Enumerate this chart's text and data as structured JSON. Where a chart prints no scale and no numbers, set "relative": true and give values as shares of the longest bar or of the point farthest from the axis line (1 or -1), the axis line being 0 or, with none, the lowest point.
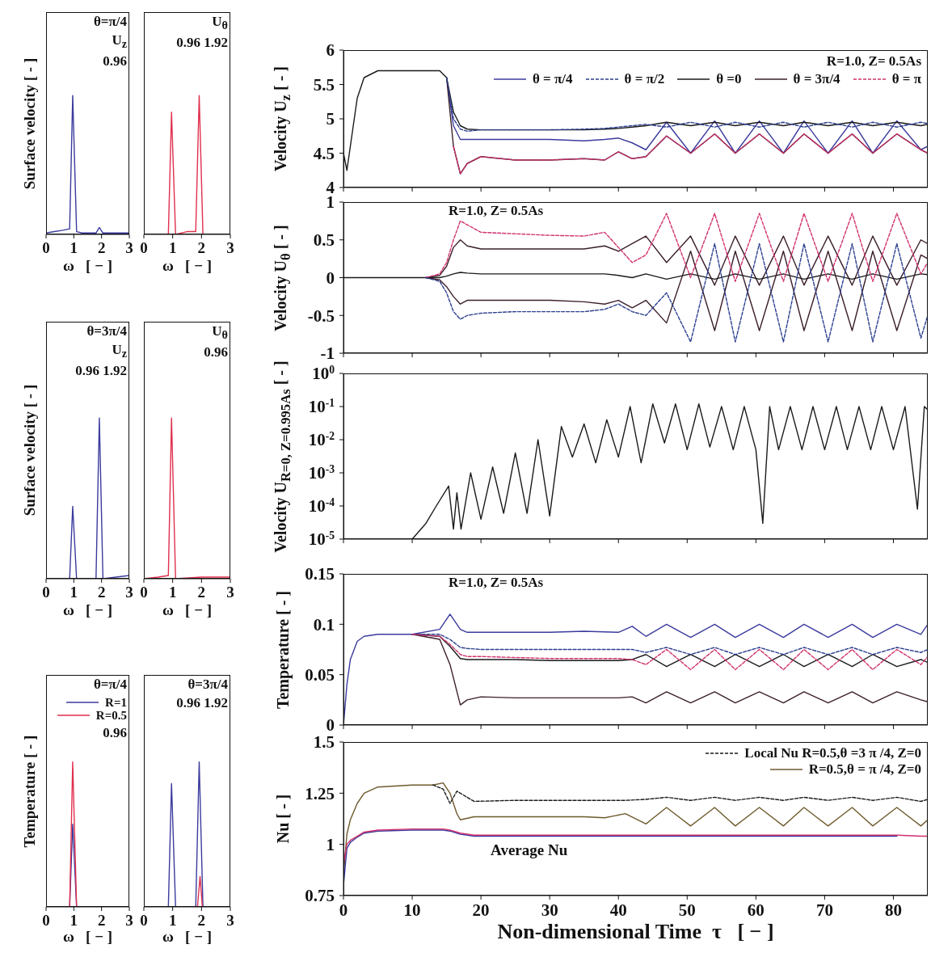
{
  "chart_data": [
    {
      "type": "line",
      "relative": true,
      "ylabel": "Surface  velocity  [ - ]",
      "xlabel": "ω   [ − ]",
      "xlim": [
        0,
        3
      ],
      "xticks": [
        0,
        1,
        2,
        3
      ],
      "annotations": [
        "θ=π/4",
        "U$_{z}$",
        "0.96"
      ],
      "series": [
        {
          "color": "#3b3b9e",
          "x": [
            0,
            0.3,
            0.6,
            0.85,
            0.96,
            1.1,
            1.3,
            1.8,
            1.92,
            2.05,
            2.5,
            3
          ],
          "values": [
            0.01,
            0.02,
            0.03,
            0.04,
            1,
            0.02,
            0.01,
            0.01,
            0.05,
            0.01,
            0.01,
            0.01
          ]
        }
      ]
    },
    {
      "type": "line",
      "relative": true,
      "xlabel": "ω   [ − ]",
      "xlim": [
        0,
        3
      ],
      "xticks": [
        0,
        1,
        2,
        3
      ],
      "annotations": [
        "U$_{θ}$",
        "0.96  1.92"
      ],
      "series": [
        {
          "color": "#e0304e",
          "x": [
            0,
            0.85,
            0.96,
            1.1,
            1.5,
            1.8,
            1.92,
            2.05,
            3
          ],
          "values": [
            0,
            0,
            0.88,
            0,
            0.02,
            0.02,
            1,
            0,
            0
          ]
        }
      ]
    },
    {
      "type": "line",
      "relative": true,
      "ylabel": "Surface  velocity  [ - ]",
      "xlabel": "ω   [ − ]",
      "xlim": [
        0,
        3
      ],
      "xticks": [
        0,
        1,
        2,
        3
      ],
      "annotations": [
        "θ=3π/4",
        "U$_{z}$",
        "0.96 1.92"
      ],
      "series": [
        {
          "color": "#3b3b9e",
          "x": [
            0,
            0.85,
            0.96,
            1.1,
            1.8,
            1.92,
            2.05,
            3
          ],
          "values": [
            0,
            0,
            0.45,
            0,
            0,
            1,
            0,
            0.02
          ]
        }
      ]
    },
    {
      "type": "line",
      "relative": true,
      "xlabel": "ω   [ − ]",
      "xlim": [
        0,
        3
      ],
      "xticks": [
        0,
        1,
        2,
        3
      ],
      "annotations": [
        "U$_{θ}$",
        "0.96"
      ],
      "series": [
        {
          "color": "#e0304e",
          "x": [
            0,
            0.5,
            0.85,
            0.96,
            1.1,
            2,
            3
          ],
          "values": [
            0,
            0.01,
            0.02,
            1,
            0,
            0.01,
            0.01
          ]
        }
      ]
    },
    {
      "type": "line",
      "relative": true,
      "ylabel": "Temperature  [ - ]",
      "xlabel": "ω   [ − ]",
      "xlim": [
        0,
        3
      ],
      "xticks": [
        0,
        1,
        2,
        3
      ],
      "annotations": [
        "θ=π/4",
        "0.96"
      ],
      "legend": "top right",
      "series": [
        {
          "name": "R=1",
          "color": "#3b3b9e",
          "x": [
            0,
            0.85,
            0.96,
            1.1,
            3
          ],
          "values": [
            0,
            0,
            0.57,
            0,
            0
          ]
        },
        {
          "name": "R=0.5",
          "color": "#e0304e",
          "x": [
            0,
            0.85,
            0.96,
            1.1,
            3
          ],
          "values": [
            0,
            0,
            1,
            0,
            0
          ]
        }
      ]
    },
    {
      "type": "line",
      "relative": true,
      "xlabel": "ω   [ − ]",
      "xlim": [
        0,
        3
      ],
      "xticks": [
        0,
        1,
        2,
        3
      ],
      "annotations": [
        "θ=3π/4",
        "0.96  1.92"
      ],
      "series": [
        {
          "color": "#3b3b9e",
          "x": [
            0,
            0.85,
            0.96,
            1.1,
            1.8,
            1.92,
            2.05,
            3
          ],
          "values": [
            0,
            0,
            0.85,
            0,
            0,
            1,
            0,
            0
          ]
        },
        {
          "color": "#e0304e",
          "x": [
            1.86,
            1.95,
            2.03
          ],
          "values": [
            0,
            0.21,
            0
          ]
        }
      ]
    },
    {
      "type": "line",
      "ylabel": "Velocity  U$_{z}$  [ - ]",
      "xlim": [
        0,
        85
      ],
      "xticks": [
        0,
        10,
        20,
        30,
        40,
        50,
        60,
        70,
        80
      ],
      "ylim": [
        4,
        6
      ],
      "yticks": [
        4,
        4.5,
        5,
        5.5,
        6
      ],
      "tick_labels": "y",
      "legend": "top right",
      "annotations": [
        "R=1.0,  Z= 0.5As"
      ],
      "x": [
        0,
        0.5,
        1,
        2,
        3,
        5,
        8,
        12,
        14,
        15,
        16,
        17,
        18,
        20,
        25,
        30,
        35,
        38,
        40,
        42,
        44,
        47,
        50.5,
        54,
        57,
        60.5,
        64,
        67,
        70.5,
        74,
        77,
        80.5,
        84,
        85
      ],
      "series": [
        {
          "name": "θ = π/4",
          "color": "#3b3b9e",
          "values": [
            null,
            null,
            null,
            null,
            null,
            null,
            null,
            null,
            null,
            5.6,
            4.9,
            4.7,
            4.7,
            4.7,
            4.7,
            4.7,
            4.68,
            4.7,
            4.72,
            4.65,
            4.55,
            4.95,
            4.5,
            4.97,
            4.5,
            4.97,
            4.5,
            4.97,
            4.5,
            4.97,
            4.5,
            4.97,
            4.55,
            4.6
          ]
        },
        {
          "name": "θ = π/2",
          "color": "#2b3f8f",
          "line_style": "dashed",
          "values": [
            null,
            null,
            null,
            null,
            null,
            null,
            null,
            null,
            null,
            5.6,
            5.0,
            4.85,
            4.82,
            4.84,
            4.84,
            4.84,
            4.85,
            4.86,
            4.88,
            4.9,
            4.92,
            4.88,
            4.95,
            4.88,
            4.95,
            4.88,
            4.95,
            4.88,
            4.95,
            4.88,
            4.95,
            4.88,
            4.95,
            4.93
          ]
        },
        {
          "name": "θ =0",
          "color": "#1a1a1a",
          "values": [
            4.5,
            4.25,
            4.6,
            5.3,
            5.6,
            5.7,
            5.7,
            5.7,
            5.7,
            5.6,
            5.1,
            4.9,
            4.85,
            4.84,
            4.84,
            4.84,
            4.84,
            4.85,
            4.86,
            4.88,
            4.9,
            4.95,
            4.9,
            4.95,
            4.9,
            4.95,
            4.9,
            4.95,
            4.9,
            4.95,
            4.9,
            4.95,
            4.9,
            4.92
          ]
        },
        {
          "name": "θ = 3π/4",
          "color": "#3b1f2b",
          "values": [
            null,
            null,
            null,
            null,
            null,
            null,
            null,
            null,
            null,
            5.6,
            4.6,
            4.2,
            4.35,
            4.45,
            4.4,
            4.4,
            4.42,
            4.4,
            4.52,
            4.42,
            4.45,
            4.75,
            4.5,
            4.78,
            4.5,
            4.78,
            4.5,
            4.78,
            4.5,
            4.78,
            4.5,
            4.78,
            4.55,
            4.5
          ]
        },
        {
          "name": "θ = π",
          "color": "#d0306e",
          "line_style": "dashed",
          "values": [
            null,
            null,
            null,
            null,
            null,
            null,
            null,
            null,
            null,
            null,
            4.6,
            4.2,
            4.35,
            4.45,
            4.4,
            4.4,
            4.42,
            4.4,
            4.52,
            4.42,
            4.45,
            4.75,
            4.5,
            4.78,
            4.5,
            4.78,
            4.5,
            4.78,
            4.5,
            4.78,
            4.5,
            4.78,
            4.55,
            4.5
          ]
        }
      ]
    },
    {
      "type": "line",
      "ylabel": "Velocity  U$_{θ}$ [ - ]",
      "xlim": [
        0,
        85
      ],
      "xticks": [
        0,
        10,
        20,
        30,
        40,
        50,
        60,
        70,
        80
      ],
      "ylim": [
        -1,
        1
      ],
      "yticks": [
        -1,
        -0.5,
        0,
        0.5,
        1
      ],
      "tick_labels": "y",
      "annotations": [
        "R=1.0,  Z= 0.5As"
      ],
      "x": [
        0,
        0.5,
        1,
        2,
        3,
        5,
        8,
        12,
        14,
        15,
        16,
        17,
        18,
        20,
        25,
        30,
        35,
        38,
        40,
        42,
        44,
        47,
        50.5,
        54,
        57,
        60.5,
        64,
        67,
        70.5,
        74,
        77,
        80.5,
        84,
        85
      ],
      "series": [
        {
          "color": "#d0306e",
          "line_style": "dashed",
          "values": [
            null,
            null,
            null,
            null,
            null,
            null,
            null,
            0,
            0.05,
            0.2,
            0.5,
            0.75,
            0.7,
            0.6,
            0.58,
            0.56,
            0.55,
            0.6,
            0.4,
            0.2,
            0.3,
            0.85,
            0.0,
            0.85,
            -0.05,
            0.85,
            -0.05,
            0.85,
            -0.05,
            0.85,
            -0.05,
            0.85,
            0.05,
            0.2
          ]
        },
        {
          "color": "#3b1f2b",
          "values": [
            null,
            null,
            null,
            null,
            null,
            null,
            null,
            0,
            0.03,
            0.15,
            0.4,
            0.5,
            0.42,
            0.38,
            0.38,
            0.38,
            0.38,
            0.42,
            0.35,
            0.45,
            0.55,
            0.2,
            0.55,
            -0.1,
            0.55,
            -0.1,
            0.55,
            -0.1,
            0.55,
            -0.1,
            0.55,
            -0.1,
            0.5,
            0.45
          ]
        },
        {
          "color": "#1a1a1a",
          "values": [
            0,
            0,
            0,
            0,
            0,
            0,
            0,
            0,
            0,
            0.02,
            0.05,
            0.07,
            0.06,
            0.05,
            0.05,
            0.05,
            0.05,
            0.05,
            0.03,
            0.0,
            0.05,
            -0.02,
            0.05,
            -0.02,
            0.05,
            -0.02,
            0.05,
            -0.02,
            0.05,
            -0.02,
            0.05,
            -0.02,
            0.05,
            0.04
          ]
        },
        {
          "color": "#3b1f2b",
          "values": [
            null,
            null,
            null,
            null,
            null,
            null,
            null,
            0,
            -0.03,
            -0.12,
            -0.25,
            -0.35,
            -0.3,
            -0.3,
            -0.3,
            -0.3,
            -0.32,
            -0.35,
            -0.3,
            -0.4,
            -0.3,
            -0.6,
            0.35,
            -0.7,
            0.35,
            -0.7,
            0.35,
            -0.7,
            0.35,
            -0.7,
            0.35,
            -0.7,
            0.3,
            0.25
          ]
        },
        {
          "color": "#2b3f8f",
          "line_style": "dashed",
          "values": [
            null,
            null,
            null,
            null,
            null,
            null,
            null,
            0,
            -0.05,
            -0.2,
            -0.45,
            -0.55,
            -0.5,
            -0.47,
            -0.45,
            -0.45,
            -0.45,
            -0.42,
            -0.35,
            -0.45,
            -0.5,
            -0.2,
            -0.85,
            0.45,
            -0.85,
            0.45,
            -0.85,
            0.45,
            -0.85,
            0.45,
            -0.85,
            0.45,
            -0.8,
            -0.5
          ]
        }
      ]
    },
    {
      "type": "line",
      "log": "y",
      "ylabel": "Velocity  U$_{R=0, Z=0.995As}$ [ - ]",
      "xlim": [
        0,
        85
      ],
      "xticks": [
        0,
        10,
        20,
        30,
        40,
        50,
        60,
        70,
        80
      ],
      "ylim": [
        1e-05,
        1
      ],
      "tick_labels": "y",
      "yticks": [
        {
          "value": 1e-05,
          "label": "10$^{-5}$"
        },
        {
          "value": 0.0001,
          "label": "10$^{-4}$"
        },
        {
          "value": 0.001,
          "label": "10$^{-3}$"
        },
        {
          "value": 0.01,
          "label": "10$^{-2}$"
        },
        {
          "value": 0.1,
          "label": "10$^{-1}$"
        },
        {
          "value": 1,
          "label": "10$^{0}$"
        }
      ],
      "series": [
        {
          "color": "#1a1a1a",
          "x": [
            10,
            12,
            13.5,
            15.3,
            16,
            16.5,
            17.1,
            18.5,
            20,
            21.7,
            23.3,
            25,
            26.7,
            28.3,
            30,
            31.7,
            33.3,
            35,
            36.7,
            38.3,
            40,
            41.7,
            43.3,
            45,
            46.7,
            48.3,
            50,
            51.7,
            53.3,
            55,
            56.7,
            58.3,
            60,
            61,
            62,
            63.3,
            65,
            66.7,
            68.3,
            70,
            71.7,
            73.3,
            75,
            76.7,
            78.3,
            80,
            81.7,
            83.5,
            84.5,
            85
          ],
          "values": [
            1e-05,
            3e-05,
            0.0001,
            0.0004,
            2e-05,
            0.00025,
            2e-05,
            0.001,
            4e-05,
            0.0015,
            6e-05,
            0.004,
            6e-05,
            0.01,
            5e-05,
            0.025,
            0.003,
            0.03,
            0.002,
            0.04,
            0.003,
            0.1,
            0.002,
            0.12,
            0.008,
            0.12,
            0.005,
            0.12,
            0.006,
            0.1,
            0.005,
            0.1,
            0.005,
            3e-05,
            0.1,
            0.005,
            0.1,
            0.005,
            0.1,
            0.005,
            0.1,
            0.005,
            0.1,
            0.005,
            0.1,
            0.005,
            0.1,
            8e-05,
            0.1,
            0.08
          ]
        }
      ]
    },
    {
      "type": "line",
      "ylabel": "Temperature [ - ]",
      "xlim": [
        0,
        85
      ],
      "xticks": [
        0,
        10,
        20,
        30,
        40,
        50,
        60,
        70,
        80
      ],
      "ylim": [
        0,
        0.15
      ],
      "yticks": [
        0,
        0.05,
        0.1,
        0.15
      ],
      "tick_labels": "y",
      "annotations": [
        "R=1.0, Z= 0.5As"
      ],
      "x": [
        0,
        0.5,
        1,
        2,
        3,
        5,
        10,
        14,
        15.5,
        17,
        18,
        20,
        25,
        30,
        35,
        40,
        42,
        44,
        47,
        50.5,
        54,
        57,
        60.5,
        64,
        67,
        70.5,
        74,
        77,
        80.5,
        84,
        85
      ],
      "series": [
        {
          "color": "#3b3b9e",
          "values": [
            0,
            0.04,
            0.065,
            0.083,
            0.088,
            0.09,
            0.09,
            0.095,
            0.11,
            0.095,
            0.092,
            0.092,
            0.092,
            0.092,
            0.093,
            0.092,
            0.098,
            0.088,
            0.1,
            0.087,
            0.1,
            0.087,
            0.1,
            0.087,
            0.1,
            0.087,
            0.1,
            0.087,
            0.1,
            0.09,
            0.1
          ]
        },
        {
          "color": "#2b3f8f",
          "line_style": "dashed",
          "values": [
            null,
            null,
            null,
            null,
            null,
            null,
            0.09,
            0.09,
            0.085,
            0.077,
            0.076,
            0.075,
            0.075,
            0.075,
            0.075,
            0.075,
            0.075,
            0.072,
            0.077,
            0.07,
            0.077,
            0.07,
            0.077,
            0.07,
            0.077,
            0.07,
            0.077,
            0.07,
            0.077,
            0.072,
            0.075
          ]
        },
        {
          "color": "#d0306e",
          "line_style": "dashed",
          "values": [
            null,
            null,
            null,
            null,
            null,
            null,
            0.09,
            0.088,
            0.08,
            0.07,
            0.068,
            0.068,
            0.067,
            0.066,
            0.066,
            0.066,
            0.065,
            0.06,
            0.075,
            0.055,
            0.075,
            0.055,
            0.075,
            0.055,
            0.075,
            0.055,
            0.075,
            0.055,
            0.075,
            0.06,
            0.068
          ]
        },
        {
          "color": "#1a1a1a",
          "values": [
            null,
            null,
            null,
            null,
            null,
            null,
            0.09,
            0.088,
            0.078,
            0.066,
            0.065,
            0.065,
            0.065,
            0.064,
            0.064,
            0.064,
            0.065,
            0.07,
            0.058,
            0.07,
            0.058,
            0.07,
            0.058,
            0.07,
            0.058,
            0.07,
            0.058,
            0.07,
            0.058,
            0.065,
            0.062
          ]
        },
        {
          "color": "#3b1f2b",
          "values": [
            null,
            null,
            null,
            null,
            null,
            null,
            0.09,
            0.085,
            0.06,
            0.02,
            0.025,
            0.028,
            0.027,
            0.027,
            0.027,
            0.027,
            0.028,
            0.022,
            0.033,
            0.022,
            0.033,
            0.022,
            0.033,
            0.022,
            0.033,
            0.022,
            0.033,
            0.022,
            0.033,
            0.025,
            0.023
          ]
        }
      ]
    },
    {
      "type": "line",
      "ylabel": "Nu  [ - ]",
      "xlabel": "Non-dimensional Time  τ   [ − ]",
      "xlim": [
        0,
        85
      ],
      "xticks": [
        0,
        10,
        20,
        30,
        40,
        50,
        60,
        70,
        80
      ],
      "ylim": [
        0.75,
        1.5
      ],
      "yticks": [
        0.75,
        1,
        1.25,
        1.5
      ],
      "legend": "top right",
      "annotations": [
        {
          "text": "Average Nu",
          "x": 27,
          "y": 1.045
        }
      ],
      "x": [
        0,
        0.5,
        1,
        2,
        3,
        5,
        10,
        13,
        14.5,
        15.5,
        16.5,
        17,
        19,
        25,
        30,
        35,
        38,
        41,
        44,
        47,
        50.5,
        54,
        57,
        60.5,
        64,
        67,
        70.5,
        74,
        77,
        80.5,
        84,
        85
      ],
      "series": [
        {
          "name": "Local Nu  R=0.5,θ =3 π /4, Z=0",
          "color": "#1a1a1a",
          "line_style": "dashed",
          "values": [
            null,
            null,
            null,
            null,
            null,
            null,
            null,
            1.29,
            1.27,
            1.2,
            1.26,
            1.25,
            1.21,
            1.215,
            1.215,
            1.215,
            1.215,
            1.215,
            1.22,
            1.23,
            1.215,
            1.23,
            1.215,
            1.23,
            1.215,
            1.23,
            1.215,
            1.23,
            1.215,
            1.23,
            1.21,
            1.22
          ]
        },
        {
          "name": "R=0.5,θ = π /4, Z=0",
          "color": "#6e5a2c",
          "values": [
            0.85,
            1.05,
            1.12,
            1.2,
            1.25,
            1.28,
            1.29,
            1.29,
            1.3,
            1.25,
            1.15,
            1.12,
            1.135,
            1.135,
            1.135,
            1.135,
            1.13,
            1.15,
            1.1,
            1.18,
            1.09,
            1.18,
            1.09,
            1.18,
            1.09,
            1.18,
            1.09,
            1.18,
            1.09,
            1.18,
            1.09,
            1.12
          ]
        },
        {
          "color": "#3b3b9e",
          "values": [
            0.8,
            0.98,
            1.01,
            1.035,
            1.055,
            1.065,
            1.07,
            1.07,
            1.07,
            1.065,
            1.055,
            1.05,
            1.04,
            1.04,
            1.04,
            1.04,
            1.04,
            1.04,
            1.04,
            1.04,
            1.04,
            1.04,
            1.04,
            1.04,
            1.04,
            1.04,
            1.04,
            1.04,
            1.04,
            1.04,
            null,
            null
          ]
        },
        {
          "color": "#d0306e",
          "values": [
            0.9,
            1.0,
            1.02,
            1.04,
            1.06,
            1.07,
            1.075,
            1.075,
            1.075,
            1.07,
            1.06,
            1.055,
            1.045,
            1.045,
            1.045,
            1.045,
            1.045,
            1.045,
            1.045,
            1.045,
            1.045,
            1.045,
            1.045,
            1.045,
            1.045,
            1.045,
            1.045,
            1.045,
            1.045,
            1.045,
            1.04,
            1.04
          ]
        }
      ]
    }
  ]
}
